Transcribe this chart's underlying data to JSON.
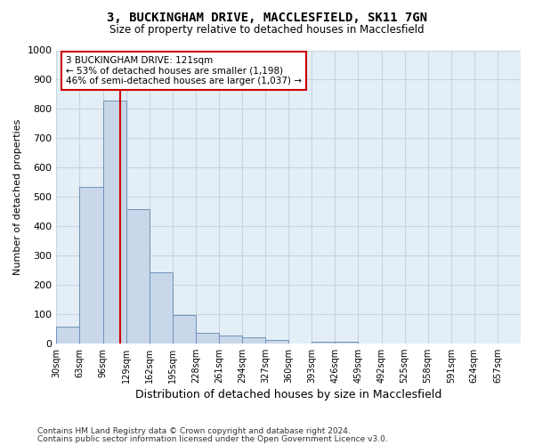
{
  "title": "3, BUCKINGHAM DRIVE, MACCLESFIELD, SK11 7GN",
  "subtitle": "Size of property relative to detached houses in Macclesfield",
  "xlabel": "Distribution of detached houses by size in Macclesfield",
  "ylabel": "Number of detached properties",
  "bar_left_edges": [
    30,
    63,
    96,
    129,
    162,
    195,
    228,
    261,
    294,
    327,
    360,
    393,
    426,
    459,
    492,
    525,
    558,
    591,
    624,
    657
  ],
  "bar_heights": [
    57,
    533,
    828,
    459,
    243,
    97,
    36,
    27,
    20,
    10,
    0,
    5,
    5,
    0,
    0,
    0,
    0,
    0,
    0,
    0
  ],
  "bin_width": 33,
  "bar_color": "#c8d8ea",
  "bar_edgecolor": "#7090b8",
  "ylim": [
    0,
    1000
  ],
  "yticks": [
    0,
    100,
    200,
    300,
    400,
    500,
    600,
    700,
    800,
    900,
    1000
  ],
  "vline_x": 121,
  "vline_color": "#cc0000",
  "annotation_text": "3 BUCKINGHAM DRIVE: 121sqm\n← 53% of detached houses are smaller (1,198)\n46% of semi-detached houses are larger (1,037) →",
  "annotation_box_color": "#ffffff",
  "annotation_box_edgecolor": "#cc0000",
  "grid_color": "#c8d4df",
  "bg_color": "#e4eef6",
  "footnote1": "Contains HM Land Registry data © Crown copyright and database right 2024.",
  "footnote2": "Contains public sector information licensed under the Open Government Licence v3.0."
}
